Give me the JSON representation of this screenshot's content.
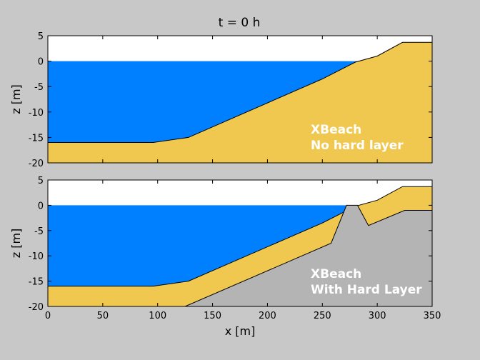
{
  "figure_title": "t = 0 h",
  "colors": {
    "background": "#c8c8c8",
    "air": "#ffffff",
    "water": "#0080ff",
    "sand": "#f0c850",
    "hard_layer": "#b4b4b4"
  },
  "chart_data": [
    {
      "type": "area",
      "title": "t = 0 h",
      "xlabel": "",
      "ylabel": "z [m]",
      "xlim": [
        0,
        350
      ],
      "ylim": [
        -20,
        5
      ],
      "yticks": [
        5,
        0,
        -5,
        -10,
        -15,
        -20
      ],
      "xticks": [],
      "grid": false,
      "annotation": [
        "XBeach",
        "No hard layer"
      ],
      "series": [
        {
          "name": "bed",
          "x": [
            0,
            96,
            128,
            250,
            280,
            300,
            323,
            350
          ],
          "y": [
            -16,
            -16,
            -15,
            -3.5,
            -0.2,
            1,
            3.7,
            3.7
          ]
        },
        {
          "name": "water_level",
          "x": [
            0,
            282
          ],
          "y": [
            0,
            0
          ]
        }
      ]
    },
    {
      "type": "area",
      "title": "",
      "xlabel": "x [m]",
      "ylabel": "z [m]",
      "xlim": [
        0,
        350
      ],
      "ylim": [
        -20,
        5
      ],
      "yticks": [
        5,
        0,
        -5,
        -10,
        -15,
        -20
      ],
      "xticks": [
        0,
        50,
        100,
        150,
        200,
        250,
        300,
        350
      ],
      "grid": false,
      "annotation": [
        "XBeach",
        "With Hard Layer"
      ],
      "series": [
        {
          "name": "bed",
          "x": [
            0,
            96,
            128,
            250,
            280,
            300,
            323,
            350
          ],
          "y": [
            -16,
            -16,
            -15,
            -3.5,
            -0.2,
            1,
            3.7,
            3.7
          ]
        },
        {
          "name": "hard_layer",
          "x": [
            125,
            258,
            272,
            282,
            292,
            325,
            350
          ],
          "y": [
            -20,
            -7.5,
            0,
            0,
            -4,
            -1,
            -1
          ]
        },
        {
          "name": "water_level",
          "x": [
            0,
            282
          ],
          "y": [
            0,
            0
          ]
        }
      ]
    }
  ]
}
